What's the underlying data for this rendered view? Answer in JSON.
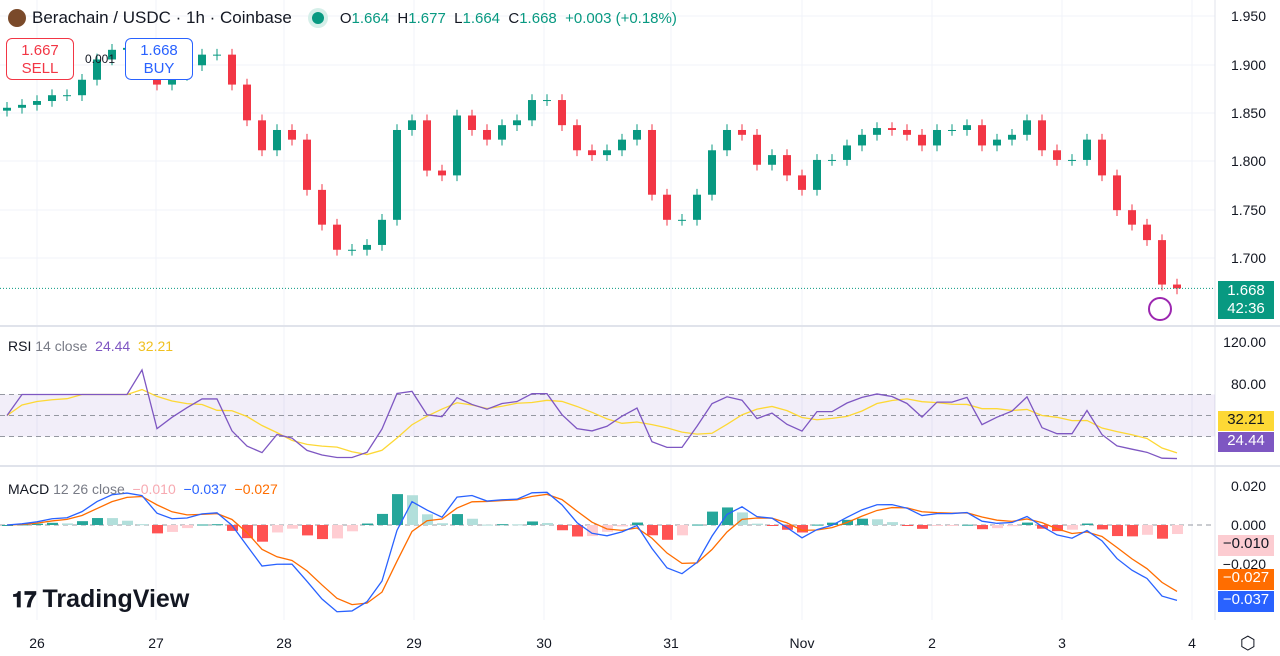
{
  "header": {
    "symbol": "Berachain / USDC · 1h · Coinbase",
    "o_label": "O",
    "o": "1.664",
    "h_label": "H",
    "h": "1.677",
    "l_label": "L",
    "l": "1.664",
    "c_label": "C",
    "c": "1.668",
    "change": "+0.003 (+0.18%)"
  },
  "trade": {
    "sell_price": "1.667",
    "sell_label": "SELL",
    "buy_price": "1.668",
    "buy_label": "BUY",
    "spread": "0.001"
  },
  "price_axis": [
    "1.950",
    "1.900",
    "1.850",
    "1.800",
    "1.750",
    "1.700"
  ],
  "last_price": {
    "value": "1.668",
    "countdown": "42:36"
  },
  "rsi": {
    "label": "RSI",
    "params": "14 close",
    "value": "24.44",
    "ma": "32.21",
    "axis": [
      "120.00",
      "80.00"
    ]
  },
  "macd": {
    "label": "MACD",
    "params": "12 26 close",
    "hist": "−0.010",
    "macd": "−0.037",
    "signal": "−0.027",
    "axis": [
      "0.020",
      "0.000",
      "−0.020"
    ]
  },
  "x_axis": [
    "26",
    "27",
    "28",
    "29",
    "30",
    "31",
    "Nov",
    "2",
    "3",
    "4"
  ],
  "brand": "TradingView",
  "colors": {
    "up": "#089981",
    "down": "#f23645",
    "rsi": "#7e57c2",
    "rsi_ma": "#fdd835",
    "macd": "#2962ff",
    "signal": "#ff6d00"
  },
  "chart_data": {
    "type": "candlestick",
    "interval_note": "approximate closes",
    "closes": [
      1.855,
      1.858,
      1.862,
      1.868,
      1.868,
      1.884,
      1.905,
      1.915,
      1.917,
      1.915,
      1.879,
      1.889,
      1.899,
      1.91,
      1.91,
      1.879,
      1.842,
      1.811,
      1.832,
      1.822,
      1.77,
      1.734,
      1.708,
      1.708,
      1.713,
      1.739,
      1.832,
      1.842,
      1.79,
      1.785,
      1.847,
      1.832,
      1.822,
      1.837,
      1.842,
      1.863,
      1.863,
      1.837,
      1.811,
      1.806,
      1.811,
      1.822,
      1.832,
      1.765,
      1.739,
      1.739,
      1.765,
      1.811,
      1.832,
      1.827,
      1.796,
      1.806,
      1.785,
      1.77,
      1.801,
      1.801,
      1.816,
      1.827,
      1.834,
      1.832,
      1.827,
      1.816,
      1.832,
      1.832,
      1.837,
      1.816,
      1.822,
      1.827,
      1.842,
      1.811,
      1.801,
      1.801,
      1.822,
      1.785,
      1.749,
      1.734,
      1.718,
      1.672,
      1.668
    ],
    "ylim": [
      1.64,
      1.96
    ]
  }
}
